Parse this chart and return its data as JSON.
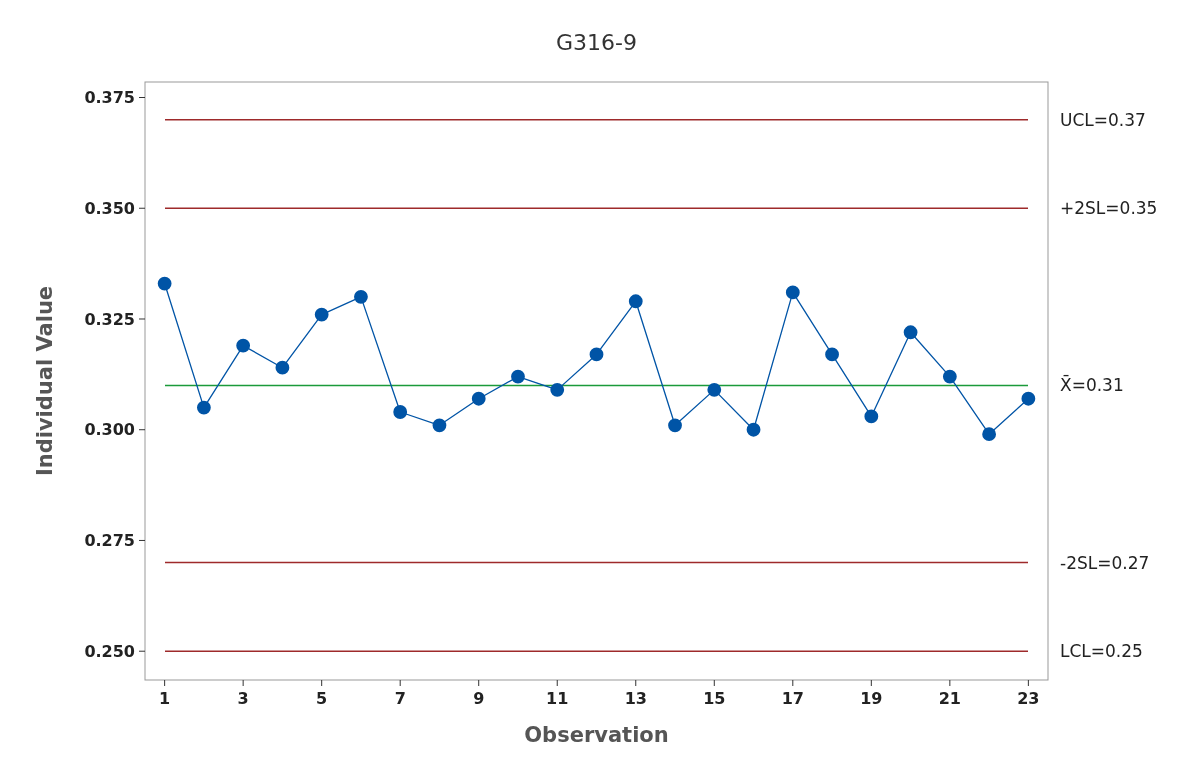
{
  "chart_data": {
    "type": "line",
    "title": "G316-9",
    "xlabel": "Observation",
    "ylabel": "Individual Value",
    "x": [
      1,
      2,
      3,
      4,
      5,
      6,
      7,
      8,
      9,
      10,
      11,
      12,
      13,
      14,
      15,
      16,
      17,
      18,
      19,
      20,
      21,
      22,
      23
    ],
    "series": [
      {
        "color": "#0054a6",
        "values": [
          0.333,
          0.305,
          0.319,
          0.314,
          0.326,
          0.33,
          0.304,
          0.301,
          0.307,
          0.312,
          0.309,
          0.317,
          0.329,
          0.301,
          0.309,
          0.3,
          0.331,
          0.317,
          0.303,
          0.322,
          0.312,
          0.299,
          0.307
        ]
      }
    ],
    "marker": "circle",
    "line_style": "solid",
    "grid": false,
    "xlim": [
      0.5,
      23.5
    ],
    "xticks": [
      1,
      3,
      5,
      7,
      9,
      11,
      13,
      15,
      17,
      19,
      21,
      23
    ],
    "ylim": [
      0.2435,
      0.3785
    ],
    "yticks": [
      {
        "value": 0.25,
        "label": "0.250"
      },
      {
        "value": 0.275,
        "label": "0.275"
      },
      {
        "value": 0.3,
        "label": "0.300"
      },
      {
        "value": 0.325,
        "label": "0.325"
      },
      {
        "value": 0.35,
        "label": "0.350"
      },
      {
        "value": 0.375,
        "label": "0.375"
      }
    ],
    "ref_lines": [
      {
        "axis": "y",
        "value": 0.37,
        "label": "UCL=0.37",
        "color": "#9e2a2b",
        "line_style": "solid"
      },
      {
        "axis": "y",
        "value": 0.35,
        "label": "+2SL=0.35",
        "color": "#9e2a2b",
        "line_style": "solid"
      },
      {
        "axis": "y",
        "value": 0.31,
        "label": "X̄=0.31",
        "color": "#1b9a3a",
        "line_style": "solid"
      },
      {
        "axis": "y",
        "value": 0.27,
        "label": "-2SL=0.27",
        "color": "#9e2a2b",
        "line_style": "solid"
      },
      {
        "axis": "y",
        "value": 0.25,
        "label": "LCL=0.25",
        "color": "#9e2a2b",
        "line_style": "solid"
      }
    ]
  }
}
